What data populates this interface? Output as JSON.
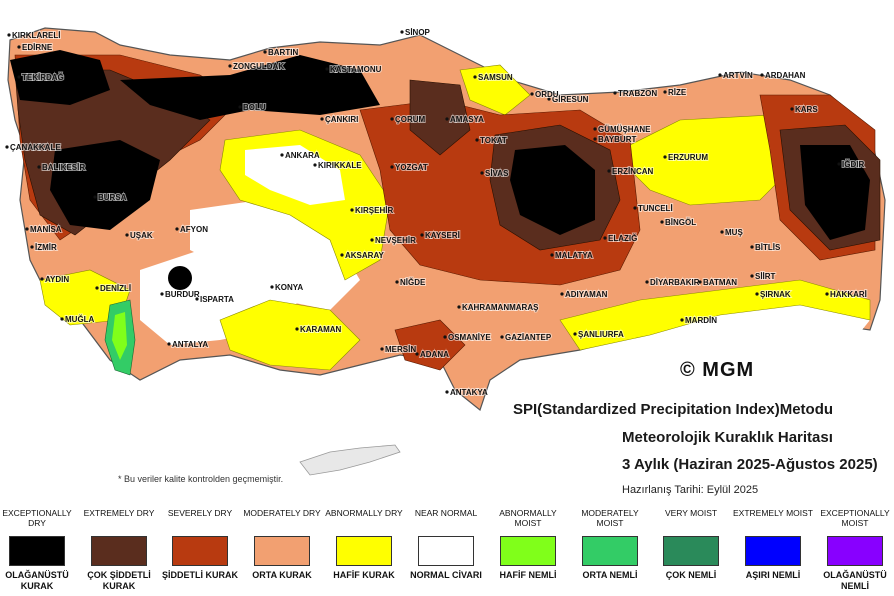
{
  "map": {
    "logo_text": "© MGM",
    "title_line1": "SPI(Standardized Precipitation Index)Metodu",
    "title_line2": "Meteorolojik Kuraklık Haritası",
    "title_line3": "3 Aylık (Haziran 2025-Ağustos 2025)",
    "prep_date": "Hazırlanış Tarihi: Eylül 2025",
    "quality_note": "* Bu veriler kalite kontrolden geçmemiştir.",
    "cities": [
      "KIRKLARELİ",
      "EDİRNE",
      "TEKİRDAĞ",
      "ÇANAKKALE",
      "BALIKESİR",
      "BURSA",
      "MANİSA",
      "İZMİR",
      "AYDIN",
      "MUĞLA",
      "DENİZLİ",
      "UŞAK",
      "AFYON",
      "BURDUR",
      "ISPARTA",
      "ANTALYA",
      "KONYA",
      "KARAMAN",
      "MERSİN",
      "ADANA",
      "OSMANİYE",
      "ANTAKYA",
      "GAZİANTEP",
      "ŞANLIURFA",
      "MARDİN",
      "KAHRAMANMARAŞ",
      "ADIYAMAN",
      "DİYARBAKIR",
      "BATMAN",
      "SİİRT",
      "ŞIRNAK",
      "HAKKARİ",
      "BİTLİS",
      "MUŞ",
      "BİNGÖL",
      "TUNCELİ",
      "ELAZIĞ",
      "MALATYA",
      "ERZİNCAN",
      "ERZURUM",
      "KARS",
      "IĞDIR",
      "ARTVİN",
      "ARDAHAN",
      "RİZE",
      "TRABZON",
      "GÜMÜŞHANE",
      "BAYBURT",
      "GİRESUN",
      "ORDU",
      "SAMSUN",
      "SİNOP",
      "KASTAMONU",
      "BARTIN",
      "ZONGULDAK",
      "BOLU",
      "ÇANKIRI",
      "ÇORUM",
      "AMASYA",
      "TOKAT",
      "SİVAS",
      "YOZGAT",
      "KIRIKKALE",
      "ANKARA",
      "KIRŞEHİR",
      "NEVŞEHİR",
      "KAYSERİ",
      "AKSARAY",
      "NİĞDE"
    ]
  },
  "legend": [
    {
      "top": "EXCEPTIONALLY DRY",
      "bottom": "OLAĞANÜSTÜ KURAK",
      "color": "#000000"
    },
    {
      "top": "EXTREMELY DRY",
      "bottom": "ÇOK ŞİDDETLİ KURAK",
      "color": "#5a2d1e"
    },
    {
      "top": "SEVERELY DRY",
      "bottom": "ŞİDDETLİ KURAK",
      "color": "#b83a10"
    },
    {
      "top": "MODERATELY DRY",
      "bottom": "ORTA KURAK",
      "color": "#f2a071"
    },
    {
      "top": "ABNORMALLY DRY",
      "bottom": "HAFİF KURAK",
      "color": "#ffff00"
    },
    {
      "top": "NEAR NORMAL",
      "bottom": "NORMAL CİVARI",
      "color": "#ffffff"
    },
    {
      "top": "ABNORMALLY MOIST",
      "bottom": "HAFİF NEMLİ",
      "color": "#80ff1a"
    },
    {
      "top": "MODERATELY MOIST",
      "bottom": "ORTA NEMLİ",
      "color": "#33cc66"
    },
    {
      "top": "VERY MOIST",
      "bottom": "ÇOK NEMLİ",
      "color": "#2a8a5a"
    },
    {
      "top": "EXTREMELY MOIST",
      "bottom": "AŞIRI NEMLİ",
      "color": "#0000ff"
    },
    {
      "top": "EXCEPTIONALLY MOIST",
      "bottom": "OLAĞANÜSTÜ NEMLİ",
      "color": "#8800ff"
    }
  ]
}
